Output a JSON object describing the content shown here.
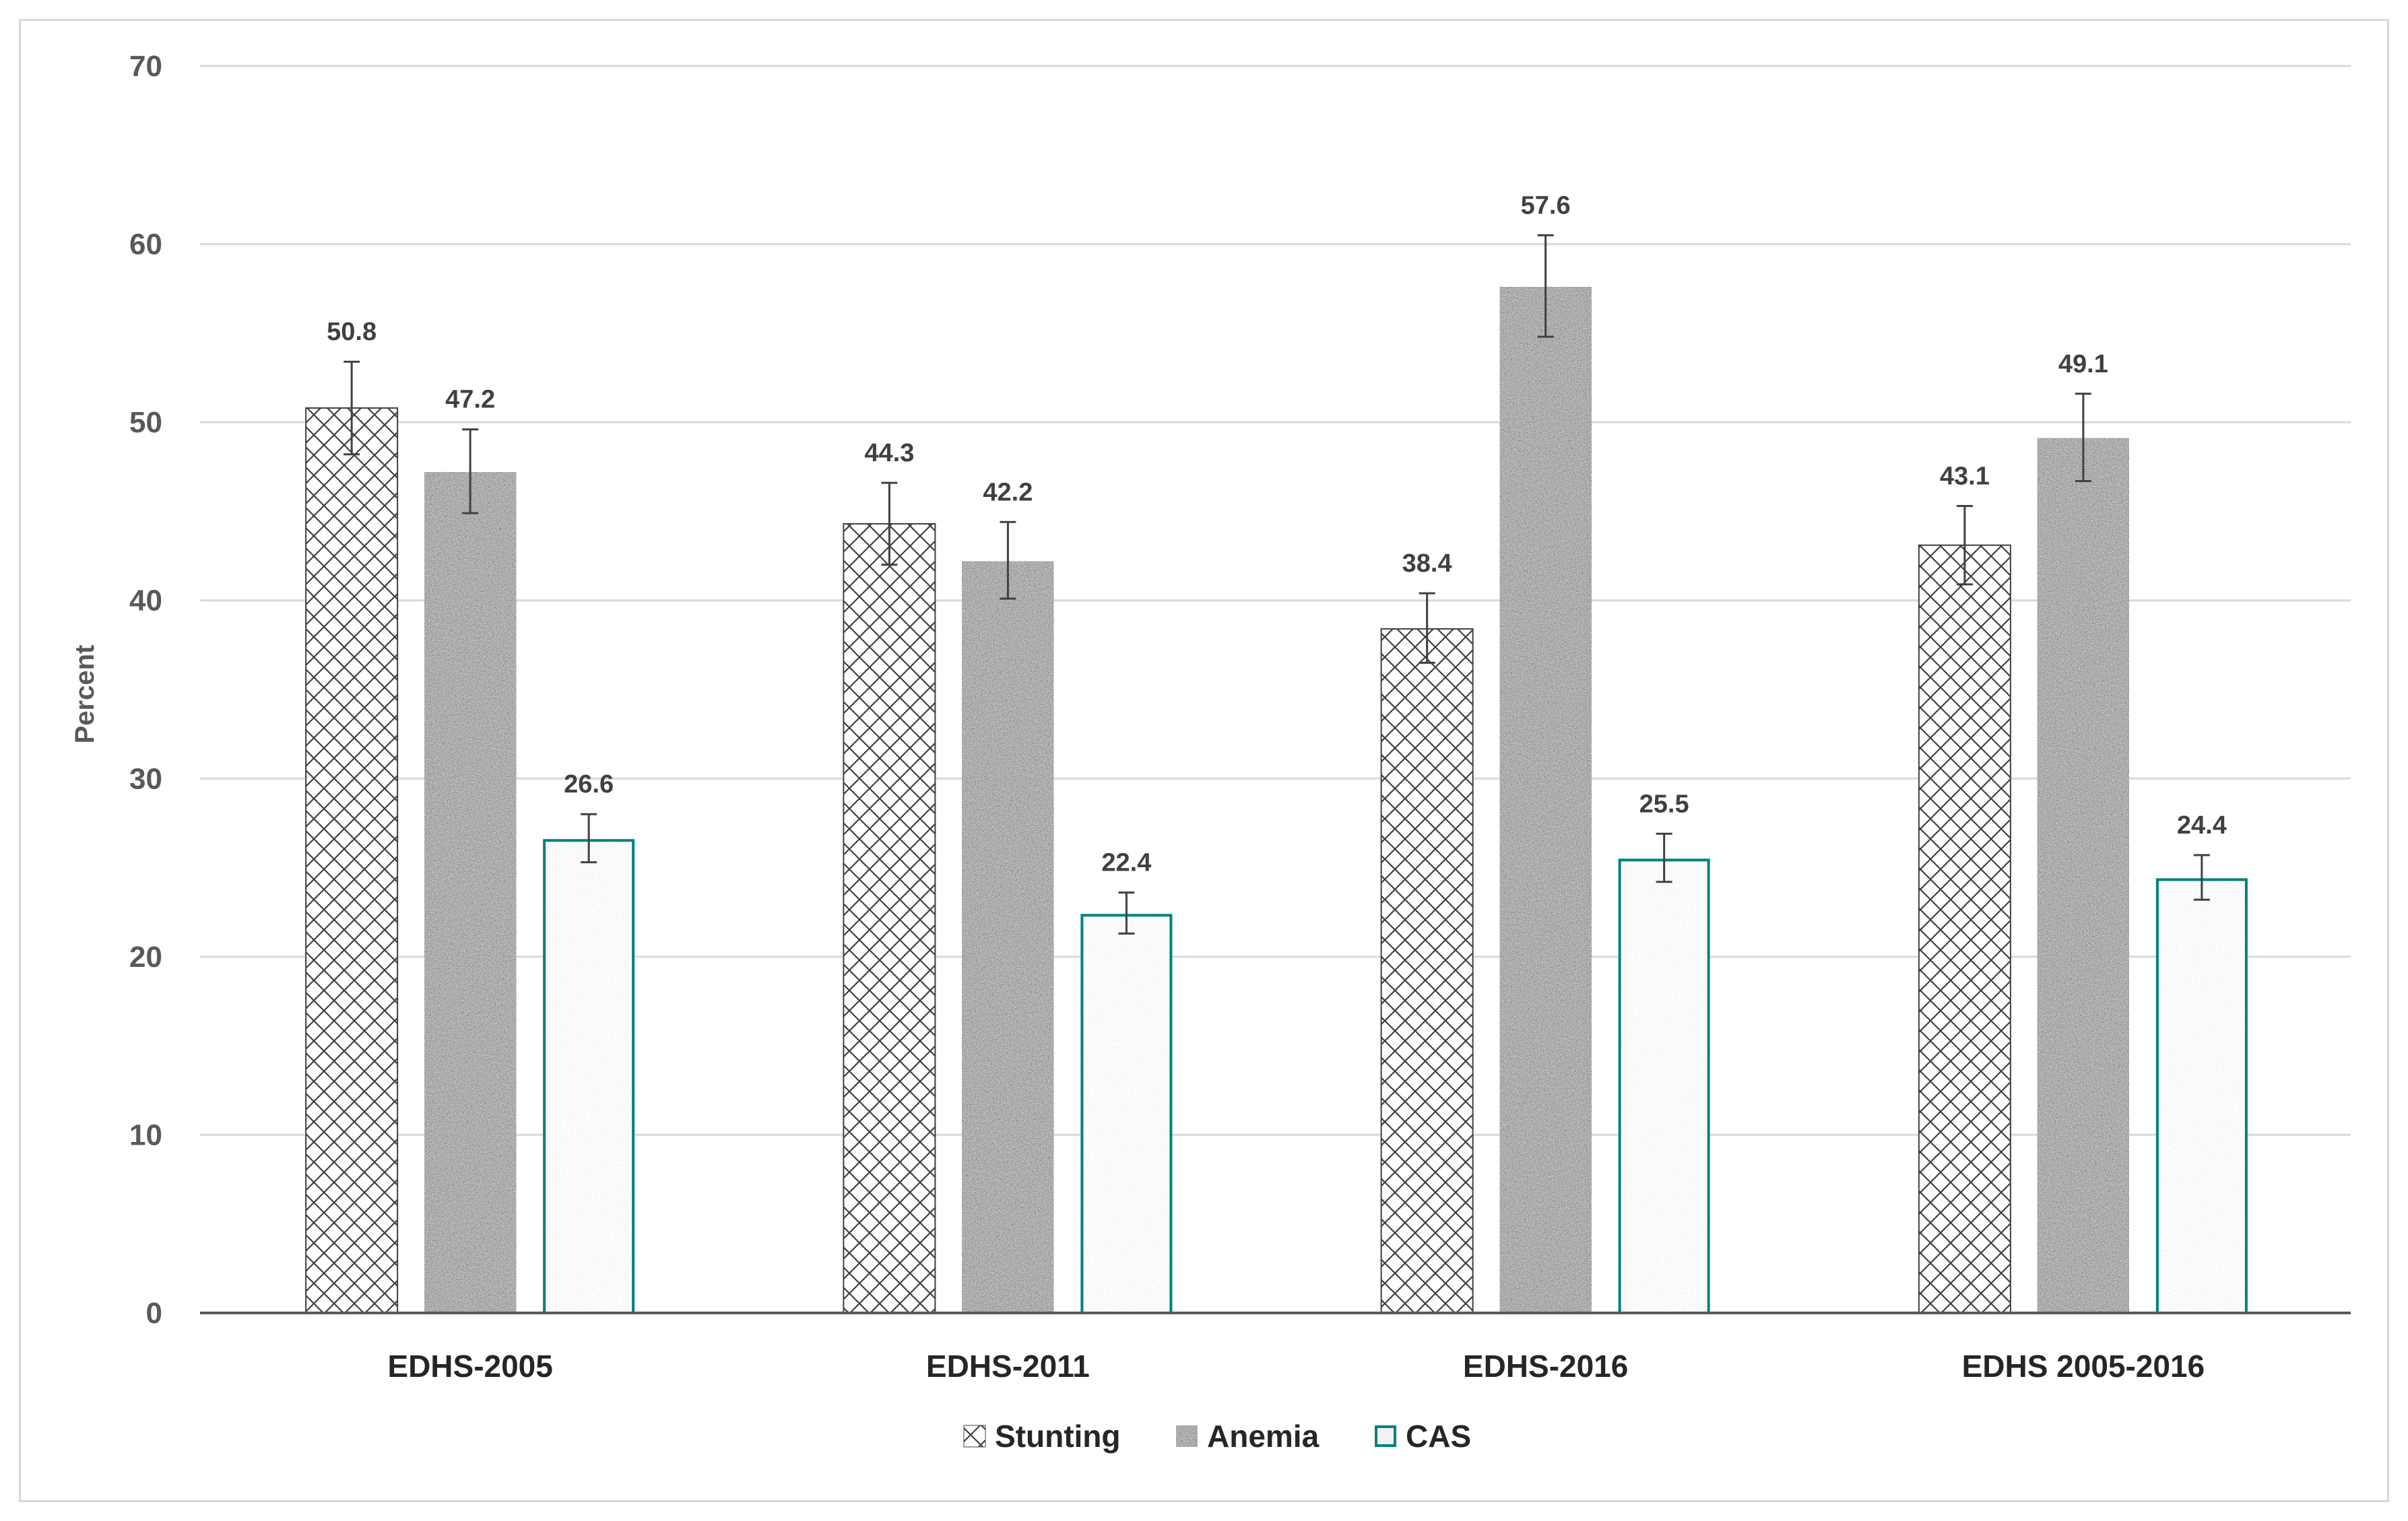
{
  "chart_data": {
    "type": "bar",
    "title": "",
    "xlabel": "",
    "ylabel": "Percent",
    "ylim": [
      0,
      70
    ],
    "yticks": [
      0,
      10,
      20,
      30,
      40,
      50,
      60,
      70
    ],
    "grid": true,
    "legend_position": "bottom",
    "categories": [
      "EDHS-2005",
      "EDHS-2011",
      "EDHS-2016",
      "EDHS 2005-2016"
    ],
    "series": [
      {
        "name": "Stunting",
        "pattern": "crosshatch",
        "color": "#404040",
        "values": [
          50.8,
          44.3,
          38.4,
          43.1
        ],
        "error_low": [
          48.2,
          42.0,
          36.5,
          40.9
        ],
        "error_high": [
          53.4,
          46.6,
          40.4,
          45.3
        ],
        "labels": [
          "50.8",
          "44.3",
          "38.4",
          "43.1"
        ]
      },
      {
        "name": "Anemia",
        "pattern": "dark-speckle",
        "color": "#7f7f7f",
        "values": [
          47.2,
          42.2,
          57.6,
          49.1
        ],
        "error_low": [
          44.9,
          40.1,
          54.8,
          46.7
        ],
        "error_high": [
          49.6,
          44.4,
          60.5,
          51.6
        ],
        "labels": [
          "47.2",
          "42.2",
          "57.6",
          "49.1"
        ]
      },
      {
        "name": "CAS",
        "pattern": "light-speckle",
        "color": "#008080",
        "values": [
          26.6,
          22.4,
          25.5,
          24.4
        ],
        "error_low": [
          25.3,
          21.3,
          24.2,
          23.2
        ],
        "error_high": [
          28.0,
          23.6,
          26.9,
          25.7
        ],
        "labels": [
          "26.6",
          "22.4",
          "25.5",
          "24.4"
        ]
      }
    ]
  }
}
